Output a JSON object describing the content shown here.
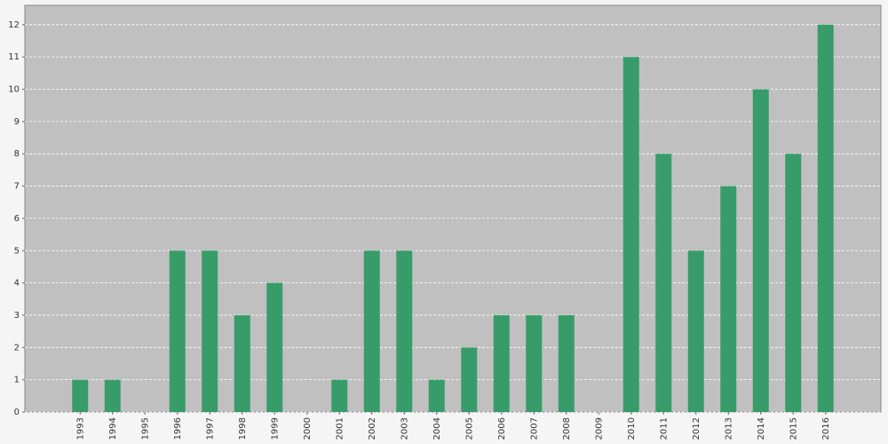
{
  "chart_data": {
    "type": "bar",
    "categories": [
      "1993",
      "1994",
      "1995",
      "1996",
      "1997",
      "1998",
      "1999",
      "2000",
      "2001",
      "2002",
      "2003",
      "2004",
      "2005",
      "2006",
      "2007",
      "2008",
      "2009",
      "2010",
      "2011",
      "2012",
      "2013",
      "2014",
      "2015",
      "2016"
    ],
    "values": [
      1,
      1,
      0,
      5,
      5,
      3,
      4,
      0,
      1,
      5,
      5,
      1,
      2,
      3,
      3,
      3,
      0,
      11,
      8,
      5,
      7,
      10,
      8,
      12
    ],
    "color": "#389c6a",
    "ylim": [
      0,
      12.6
    ],
    "yticks": [
      0,
      1,
      2,
      3,
      4,
      5,
      6,
      7,
      8,
      9,
      10,
      11,
      12
    ],
    "grid": true
  }
}
